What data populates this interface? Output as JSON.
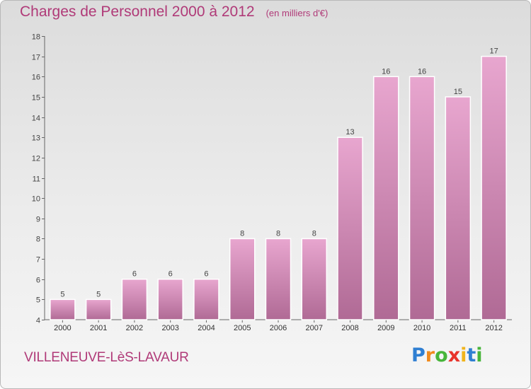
{
  "title": "Charges de Personnel 2000 à 2012",
  "subtitle": "(en milliers d'€)",
  "commune": "VILLENEUVE-LèS-LAVAUR",
  "logo": {
    "text": "Proxiti",
    "letters": [
      "P",
      "r",
      "o",
      "x",
      "i",
      "t",
      "i"
    ],
    "colors": [
      "#2f7fd2",
      "#f08a1c",
      "#47b53a",
      "#e8332a",
      "#f0b41c",
      "#2f7fd2",
      "#47b53a"
    ]
  },
  "colors": {
    "title": "#b03a78",
    "bar_top": "#e8a6cf",
    "bar_bottom": "#b06a95"
  },
  "chart_data": {
    "type": "bar",
    "categories": [
      "2000",
      "2001",
      "2002",
      "2003",
      "2004",
      "2005",
      "2006",
      "2007",
      "2008",
      "2009",
      "2010",
      "2011",
      "2012"
    ],
    "values": [
      5,
      5,
      6,
      6,
      6,
      8,
      8,
      8,
      13,
      16,
      16,
      15,
      17
    ],
    "ylim": [
      4,
      18
    ],
    "yticks": [
      4,
      5,
      6,
      7,
      8,
      9,
      10,
      11,
      12,
      13,
      14,
      15,
      16,
      17,
      18
    ],
    "grid": false,
    "legend": "none"
  }
}
